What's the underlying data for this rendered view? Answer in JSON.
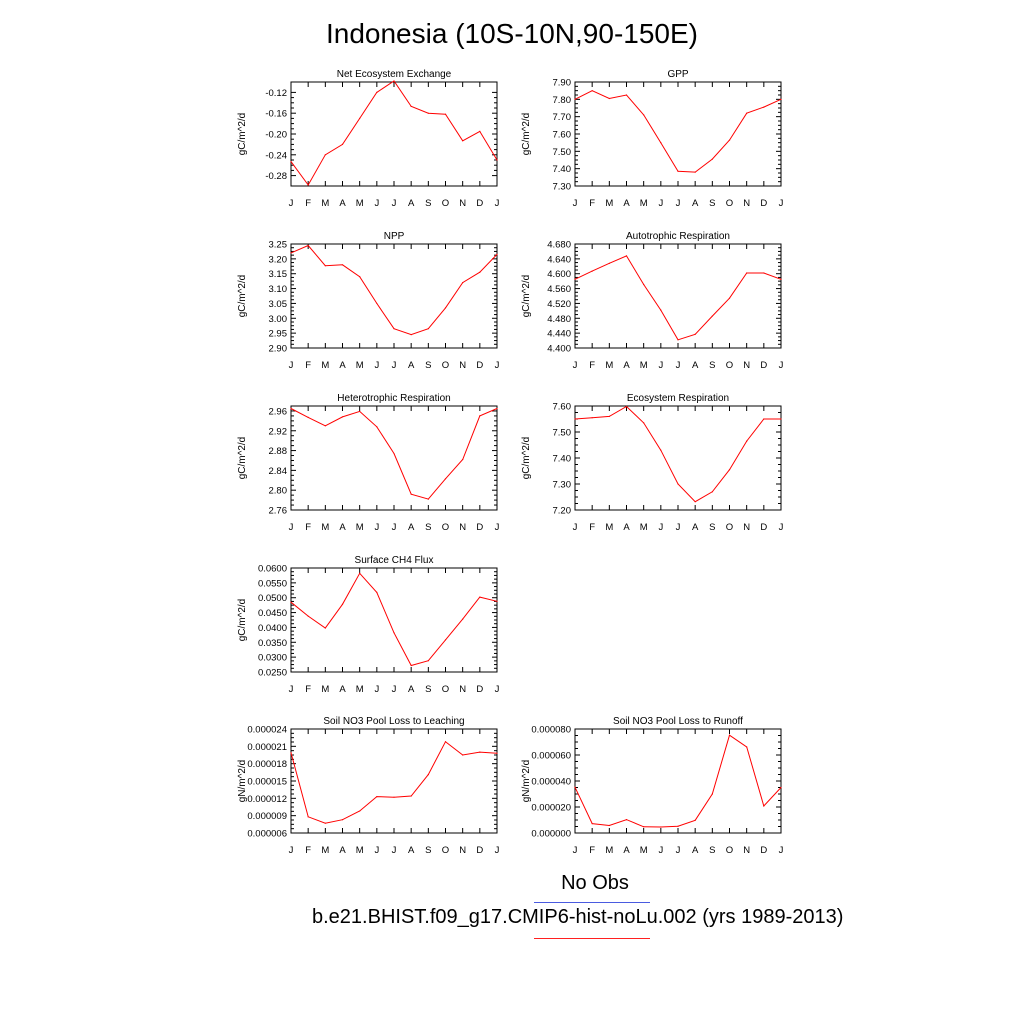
{
  "title": "Indonesia (10S-10N,90-150E)",
  "months": [
    "J",
    "F",
    "M",
    "A",
    "M",
    "J",
    "J",
    "A",
    "S",
    "O",
    "N",
    "D",
    "J"
  ],
  "colors": {
    "model_line": "#ff0000",
    "obs_line": "#4a5be0",
    "axis": "#000000"
  },
  "legend": {
    "obs_label": "No Obs",
    "model_label": "b.e21.BHIST.f09_g17.CMIP6-hist-noLu.002 (yrs 1989-2013)"
  },
  "chart_data": [
    {
      "type": "line",
      "title": "Net Ecosystem Exchange",
      "ylabel": "gC/m^2/d",
      "ylim": [
        -0.3,
        -0.1
      ],
      "yticks": [
        "-0.12",
        "-0.16",
        "-0.20",
        "-0.24",
        "-0.28"
      ],
      "ytick_values": [
        -0.12,
        -0.16,
        -0.2,
        -0.24,
        -0.28
      ],
      "values": [
        -0.253,
        -0.298,
        -0.24,
        -0.22,
        -0.17,
        -0.12,
        -0.098,
        -0.147,
        -0.16,
        -0.162,
        -0.213,
        -0.195,
        -0.25
      ]
    },
    {
      "type": "line",
      "title": "GPP",
      "ylabel": "gC/m^2/d",
      "ylim": [
        7.3,
        7.9
      ],
      "yticks": [
        "7.90",
        "7.80",
        "7.70",
        "7.60",
        "7.50",
        "7.40",
        "7.30"
      ],
      "ytick_values": [
        7.9,
        7.8,
        7.7,
        7.6,
        7.5,
        7.4,
        7.3
      ],
      "values": [
        7.8,
        7.85,
        7.805,
        7.825,
        7.71,
        7.55,
        7.385,
        7.38,
        7.455,
        7.565,
        7.72,
        7.755,
        7.8
      ]
    },
    {
      "type": "line",
      "title": "NPP",
      "ylabel": "gC/m^2/d",
      "ylim": [
        2.9,
        3.25
      ],
      "yticks": [
        "3.25",
        "3.20",
        "3.15",
        "3.10",
        "3.05",
        "3.00",
        "2.95",
        "2.90"
      ],
      "ytick_values": [
        3.25,
        3.2,
        3.15,
        3.1,
        3.05,
        3.0,
        2.95,
        2.9
      ],
      "values": [
        3.22,
        3.245,
        3.177,
        3.18,
        3.14,
        3.05,
        2.965,
        2.945,
        2.965,
        3.035,
        3.12,
        3.155,
        3.215
      ]
    },
    {
      "type": "line",
      "title": "Autotrophic Respiration",
      "ylabel": "gC/m^2/d",
      "ylim": [
        4.4,
        4.68
      ],
      "yticks": [
        "4.680",
        "4.640",
        "4.600",
        "4.560",
        "4.520",
        "4.480",
        "4.440",
        "4.400"
      ],
      "ytick_values": [
        4.68,
        4.64,
        4.6,
        4.56,
        4.52,
        4.48,
        4.44,
        4.4
      ],
      "values": [
        4.585,
        4.607,
        4.628,
        4.648,
        4.571,
        4.502,
        4.422,
        4.437,
        4.486,
        4.534,
        4.602,
        4.602,
        4.585
      ]
    },
    {
      "type": "line",
      "title": "Heterotrophic Respiration",
      "ylabel": "gC/m^2/d",
      "ylim": [
        2.76,
        2.97
      ],
      "yticks": [
        "2.96",
        "2.92",
        "2.88",
        "2.84",
        "2.80",
        "2.76"
      ],
      "ytick_values": [
        2.96,
        2.92,
        2.88,
        2.84,
        2.8,
        2.76
      ],
      "values": [
        2.965,
        2.947,
        2.93,
        2.948,
        2.959,
        2.928,
        2.874,
        2.792,
        2.782,
        2.823,
        2.862,
        2.95,
        2.965
      ]
    },
    {
      "type": "line",
      "title": "Ecosystem Respiration",
      "ylabel": "gC/m^2/d",
      "ylim": [
        7.2,
        7.6
      ],
      "yticks": [
        "7.60",
        "7.50",
        "7.40",
        "7.30",
        "7.20"
      ],
      "ytick_values": [
        7.6,
        7.5,
        7.4,
        7.3,
        7.2
      ],
      "values": [
        7.55,
        7.555,
        7.56,
        7.598,
        7.535,
        7.43,
        7.3,
        7.232,
        7.27,
        7.355,
        7.465,
        7.55,
        7.55
      ]
    },
    {
      "type": "line",
      "title": "Surface CH4 Flux",
      "ylabel": "gC/m^2/d",
      "ylim": [
        0.025,
        0.06
      ],
      "yticks": [
        "0.0600",
        "0.0550",
        "0.0500",
        "0.0450",
        "0.0400",
        "0.0350",
        "0.0300",
        "0.0250"
      ],
      "ytick_values": [
        0.06,
        0.055,
        0.05,
        0.045,
        0.04,
        0.035,
        0.03,
        0.025
      ],
      "values": [
        0.0485,
        0.0438,
        0.0398,
        0.0478,
        0.0582,
        0.0518,
        0.0382,
        0.0272,
        0.0288,
        0.0358,
        0.0428,
        0.0502,
        0.0488
      ]
    },
    {
      "type": "line",
      "title": "Soil NO3 Pool Loss to Leaching",
      "ylabel": "gN/m^2/d",
      "ylim": [
        6e-06,
        2.4e-05
      ],
      "yticks": [
        "0.000024",
        "0.000021",
        "0.000018",
        "0.000015",
        "0.000012",
        "0.000009",
        "0.000006"
      ],
      "ytick_values": [
        2.4e-05,
        2.1e-05,
        1.8e-05,
        1.5e-05,
        1.2e-05,
        9e-06,
        6e-06
      ],
      "values": [
        1.99e-05,
        8.8e-06,
        7.7e-06,
        8.3e-06,
        9.8e-06,
        1.23e-05,
        1.22e-05,
        1.24e-05,
        1.61e-05,
        2.18e-05,
        1.95e-05,
        2e-05,
        1.98e-05
      ]
    },
    {
      "type": "line",
      "title": "Soil NO3 Pool Loss to Runoff",
      "ylabel": "gN/m^2/d",
      "ylim": [
        0.0,
        8e-05
      ],
      "yticks": [
        "0.000080",
        "0.000060",
        "0.000040",
        "0.000020",
        "0.000000"
      ],
      "ytick_values": [
        8e-05,
        6e-05,
        4e-05,
        2e-05,
        0.0
      ],
      "values": [
        3.52e-05,
        7.2e-06,
        5.8e-06,
        1.03e-05,
        4.8e-06,
        4.6e-06,
        5.2e-06,
        9.8e-06,
        3e-05,
        7.52e-05,
        6.62e-05,
        2.08e-05,
        3.5e-05
      ]
    }
  ]
}
